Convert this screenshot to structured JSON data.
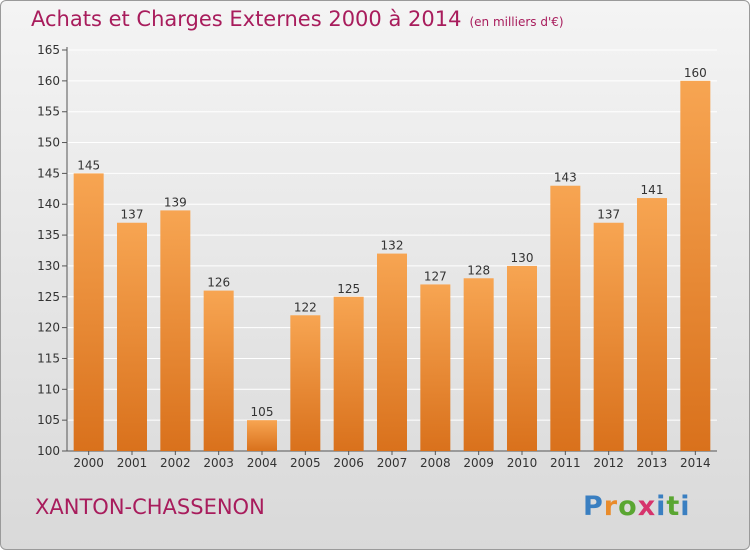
{
  "header": {
    "title": "Achats et Charges Externes 2000 à 2014",
    "subtitle": "(en milliers d'€)"
  },
  "footer": {
    "place": "XANTON-CHASSENON",
    "logo": "Proxiti"
  },
  "colors": {
    "title": "#a81c5c",
    "bar_light": "#f7a552",
    "bar_dark": "#d9711c"
  },
  "chart_data": {
    "type": "bar",
    "title": "Achats et Charges Externes 2000 à 2014",
    "subtitle": "(en milliers d'€)",
    "categories": [
      "2000",
      "2001",
      "2002",
      "2003",
      "2004",
      "2005",
      "2006",
      "2007",
      "2008",
      "2009",
      "2010",
      "2011",
      "2012",
      "2013",
      "2014"
    ],
    "values": [
      145,
      137,
      139,
      126,
      105,
      122,
      125,
      132,
      127,
      128,
      130,
      143,
      137,
      141,
      160
    ],
    "ylim": [
      100,
      165
    ],
    "yticks": [
      100,
      105,
      110,
      115,
      120,
      125,
      130,
      135,
      140,
      145,
      150,
      155,
      160,
      165
    ],
    "grid": true
  }
}
